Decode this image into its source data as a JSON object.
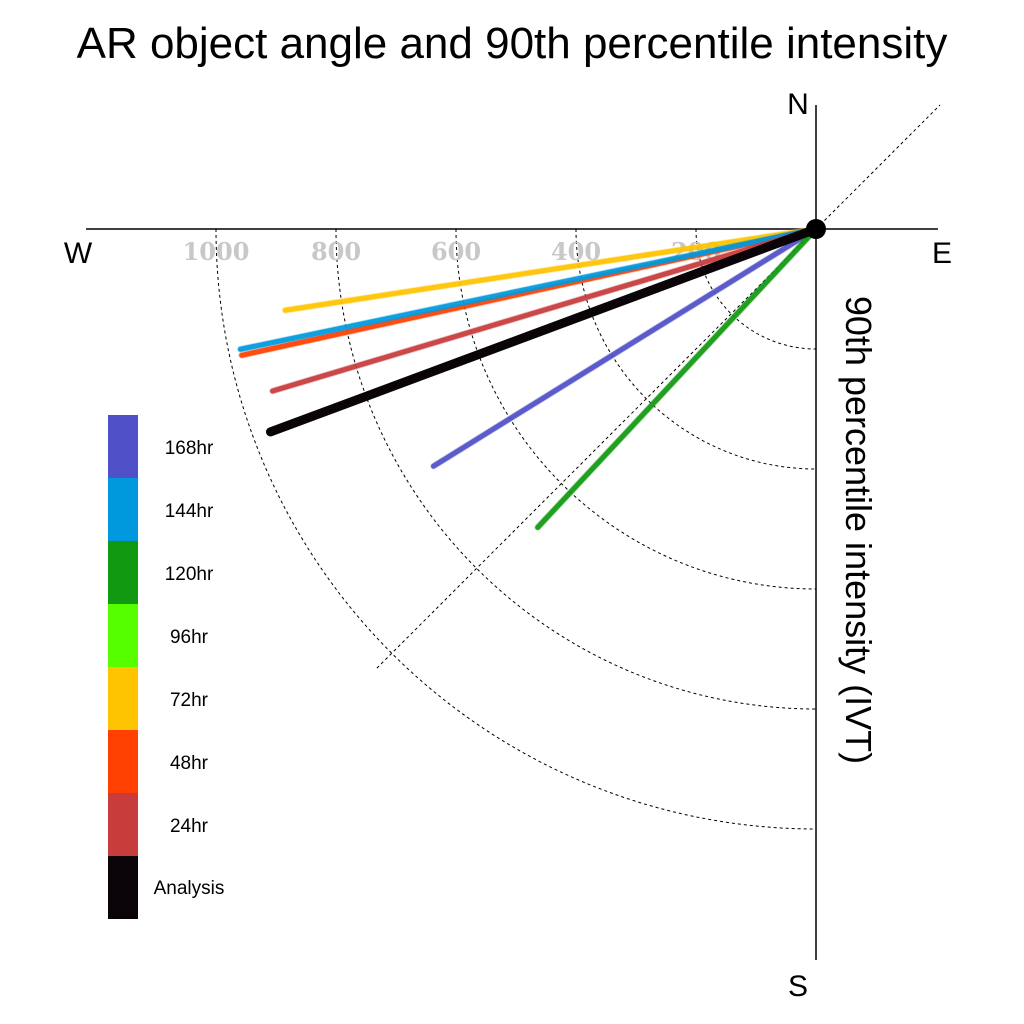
{
  "chart_data": {
    "type": "polar-line",
    "title": "AR object angle and 90th percentile intensity",
    "radial_axis_label": "90th percentile intensity (IVT)",
    "compass": {
      "north": "N",
      "south": "S",
      "east": "E",
      "west": "W"
    },
    "radial_ticks": [
      200,
      400,
      600,
      800,
      1000
    ],
    "radial_range": [
      0,
      1000
    ],
    "series": [
      {
        "name": "Analysis",
        "color": "#0a0408",
        "angle_deg_below_west": 20.4,
        "intensity": 970
      },
      {
        "name": "24hr",
        "color": "#c83c3c",
        "angle_deg_below_west": 16.6,
        "intensity": 945
      },
      {
        "name": "48hr",
        "color": "#ff4000",
        "angle_deg_below_west": 12.4,
        "intensity": 980
      },
      {
        "name": "72hr",
        "color": "#ffc400",
        "angle_deg_below_west": 8.7,
        "intensity": 895
      },
      {
        "name": "96hr",
        "color": "#55ff00",
        "angle_deg_below_west": null,
        "intensity": null
      },
      {
        "name": "120hr",
        "color": "#119911",
        "angle_deg_below_west": 47.0,
        "intensity": 680
      },
      {
        "name": "144hr",
        "color": "#0099dd",
        "angle_deg_below_west": 11.8,
        "intensity": 980
      },
      {
        "name": "168hr",
        "color": "#5050c8",
        "angle_deg_below_west": 31.8,
        "intensity": 750
      }
    ],
    "legend_order": [
      "168hr",
      "144hr",
      "120hr",
      "96hr",
      "72hr",
      "48hr",
      "24hr",
      "Analysis"
    ],
    "legend_placement": "lower-left",
    "grid": true
  }
}
